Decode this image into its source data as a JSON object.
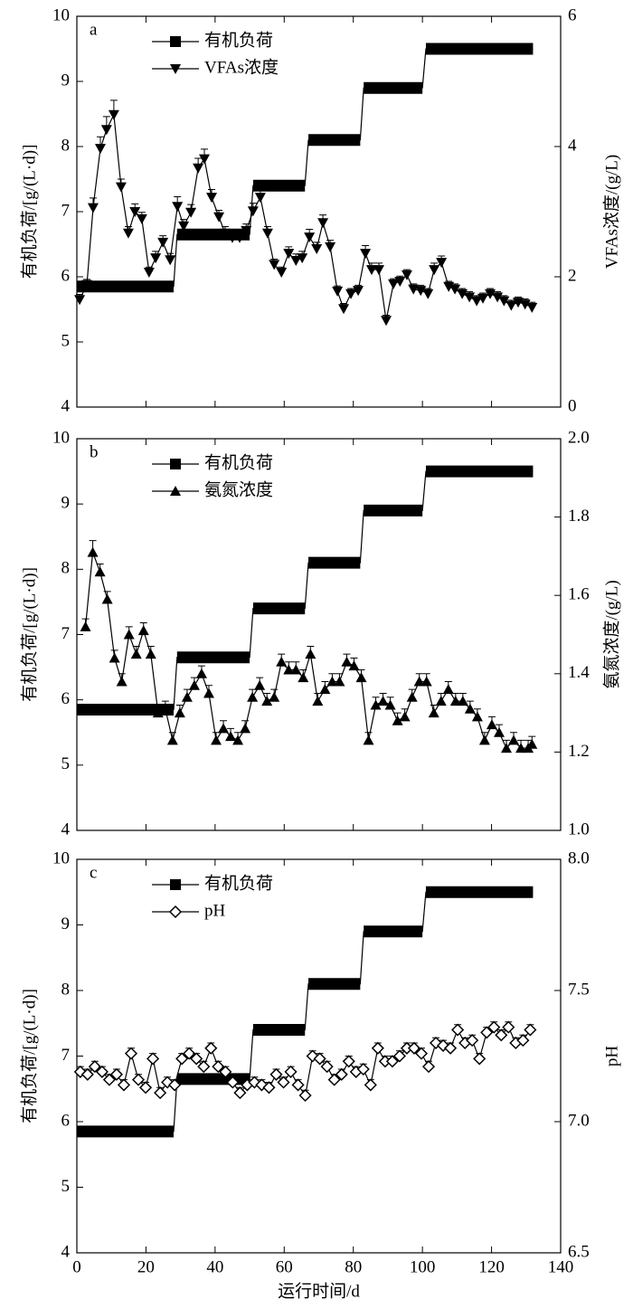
{
  "chart_data": [
    {
      "type": "line",
      "panel_label": "a",
      "ylabel": "有机负荷/[g/(L·d)]",
      "y2label": "VFAs浓度/(g/L)",
      "xlim": [
        0,
        140
      ],
      "xticks": [
        0,
        20,
        40,
        60,
        80,
        100,
        120,
        140
      ],
      "ylim": [
        4,
        10
      ],
      "yticks": [
        4,
        5,
        6,
        7,
        8,
        9,
        10
      ],
      "y2lim": [
        0,
        6
      ],
      "y2ticks": [
        0,
        2,
        4,
        6
      ],
      "legend": "upper left",
      "series": [
        {
          "name": "有机负荷",
          "color": "#000000",
          "marker": "square",
          "style": "step",
          "x": [
            0,
            28,
            29,
            50,
            51,
            66,
            67,
            82,
            83,
            100,
            101,
            132
          ],
          "values": [
            5.85,
            5.85,
            6.65,
            6.65,
            7.4,
            7.4,
            8.1,
            8.1,
            8.9,
            8.9,
            9.5,
            9.5
          ]
        },
        {
          "name": "VFAs浓度",
          "color": "#000000",
          "marker": "triangle-down",
          "axis": "y2",
          "x": [
            0.8,
            2.9,
            4.7,
            6.8,
            8.6,
            10.7,
            12.8,
            14.9,
            16.8,
            18.8,
            20.9,
            22.8,
            24.9,
            27,
            29.1,
            30.9,
            33,
            35.1,
            36.9,
            39,
            41.1,
            42.9,
            45,
            47.1,
            49,
            51,
            53.1,
            55.2,
            57.1,
            59.2,
            61.3,
            63.4,
            65.2,
            67.3,
            69.4,
            71.2,
            73.3,
            75.4,
            77.2,
            79.3,
            81.4,
            83.5,
            85.3,
            87.4,
            89.5,
            91.6,
            93.5,
            95.5,
            97.4,
            99.5,
            101.6,
            103.4,
            105.5,
            107.6,
            109.4,
            111.5,
            113.6,
            115.7,
            117.5,
            119.6,
            121.7,
            123.6,
            125.7,
            127.7,
            129.7,
            131.7
          ],
          "values": [
            1.65,
            1.88,
            3.06,
            3.97,
            4.26,
            4.49,
            3.38,
            2.67,
            3.0,
            2.89,
            2.07,
            2.29,
            2.53,
            2.26,
            3.08,
            2.78,
            2.99,
            3.67,
            3.81,
            3.22,
            2.92,
            2.67,
            2.6,
            2.6,
            2.71,
            3.01,
            3.22,
            2.67,
            2.19,
            2.07,
            2.36,
            2.25,
            2.29,
            2.61,
            2.43,
            2.83,
            2.46,
            1.78,
            1.51,
            1.74,
            1.79,
            2.36,
            2.11,
            2.11,
            1.33,
            1.89,
            1.93,
            2.03,
            1.81,
            1.79,
            1.74,
            2.11,
            2.22,
            1.85,
            1.81,
            1.74,
            1.69,
            1.63,
            1.67,
            1.74,
            1.69,
            1.63,
            1.56,
            1.61,
            1.58,
            1.53
          ],
          "errors": [
            0.08,
            0.08,
            0.15,
            0.18,
            0.2,
            0.22,
            0.12,
            0.1,
            0.12,
            0.1,
            0.08,
            0.1,
            0.1,
            0.1,
            0.15,
            0.1,
            0.12,
            0.15,
            0.15,
            0.12,
            0.1,
            0.1,
            0.1,
            0.1,
            0.1,
            0.12,
            0.12,
            0.1,
            0.08,
            0.08,
            0.1,
            0.1,
            0.1,
            0.12,
            0.1,
            0.12,
            0.1,
            0.08,
            0.08,
            0.08,
            0.08,
            0.12,
            0.1,
            0.1,
            0.08,
            0.08,
            0.08,
            0.08,
            0.08,
            0.08,
            0.08,
            0.1,
            0.1,
            0.08,
            0.08,
            0.08,
            0.08,
            0.08,
            0.08,
            0.08,
            0.08,
            0.08,
            0.08,
            0.08,
            0.08,
            0.08
          ]
        }
      ]
    },
    {
      "type": "line",
      "panel_label": "b",
      "ylabel": "有机负荷/[g/(L·d)]",
      "y2label": "氨氮浓度/(g/L)",
      "xlim": [
        0,
        140
      ],
      "xticks": [
        0,
        20,
        40,
        60,
        80,
        100,
        120,
        140
      ],
      "ylim": [
        4,
        10
      ],
      "yticks": [
        4,
        5,
        6,
        7,
        8,
        9,
        10
      ],
      "y2lim": [
        1.0,
        2.0
      ],
      "y2ticks": [
        {
          "value": 1.0,
          "label": "1.0"
        },
        1.2,
        1.4,
        1.6,
        1.8,
        {
          "value": 2.0,
          "label": "2.0"
        }
      ],
      "legend": "upper left",
      "series": [
        {
          "name": "有机负荷",
          "color": "#000000",
          "marker": "square",
          "style": "step",
          "x": [
            0,
            28,
            29,
            50,
            51,
            66,
            67,
            82,
            83,
            100,
            101,
            132
          ],
          "values": [
            5.85,
            5.85,
            6.65,
            6.65,
            7.4,
            7.4,
            8.1,
            8.1,
            8.9,
            8.9,
            9.5,
            9.5
          ]
        },
        {
          "name": "氨氮浓度",
          "color": "#000000",
          "marker": "triangle-up",
          "axis": "y2",
          "x": [
            2.5,
            4.6,
            6.7,
            8.8,
            10.9,
            13,
            15.1,
            17.2,
            19.3,
            21.4,
            23.5,
            25.6,
            27.7,
            29.8,
            31.9,
            34,
            36.1,
            38.2,
            40.3,
            42.4,
            44.5,
            46.6,
            48.7,
            50.8,
            52.9,
            55,
            57.1,
            59.2,
            61.3,
            63.4,
            65.5,
            67.6,
            69.7,
            71.8,
            73.9,
            76,
            78.1,
            80.2,
            82.3,
            84.4,
            86.5,
            88.6,
            90.7,
            92.8,
            94.9,
            97,
            99.1,
            101.2,
            103.3,
            105.4,
            107.5,
            109.6,
            111.7,
            113.8,
            115.9,
            118,
            120.1,
            122.2,
            124.3,
            126.4,
            128.5,
            130.6,
            131.7
          ],
          "values": [
            1.52,
            1.71,
            1.66,
            1.59,
            1.44,
            1.38,
            1.5,
            1.45,
            1.51,
            1.45,
            1.3,
            1.31,
            1.23,
            1.3,
            1.34,
            1.37,
            1.4,
            1.35,
            1.23,
            1.26,
            1.24,
            1.23,
            1.26,
            1.34,
            1.37,
            1.33,
            1.34,
            1.43,
            1.41,
            1.41,
            1.39,
            1.45,
            1.33,
            1.36,
            1.38,
            1.38,
            1.43,
            1.42,
            1.39,
            1.23,
            1.32,
            1.33,
            1.32,
            1.28,
            1.29,
            1.34,
            1.38,
            1.38,
            1.3,
            1.33,
            1.36,
            1.33,
            1.33,
            1.31,
            1.29,
            1.23,
            1.27,
            1.25,
            1.21,
            1.23,
            1.21,
            1.21,
            1.22
          ],
          "errors": [
            0.02,
            0.03,
            0.02,
            0.02,
            0.02,
            0.02,
            0.02,
            0.02,
            0.02,
            0.02,
            0.02,
            0.02,
            0.02,
            0.02,
            0.02,
            0.02,
            0.02,
            0.02,
            0.02,
            0.02,
            0.02,
            0.02,
            0.02,
            0.02,
            0.02,
            0.02,
            0.02,
            0.02,
            0.02,
            0.02,
            0.02,
            0.02,
            0.02,
            0.02,
            0.02,
            0.02,
            0.02,
            0.02,
            0.02,
            0.02,
            0.02,
            0.02,
            0.02,
            0.02,
            0.02,
            0.02,
            0.02,
            0.02,
            0.02,
            0.02,
            0.02,
            0.02,
            0.02,
            0.02,
            0.02,
            0.02,
            0.02,
            0.02,
            0.02,
            0.02,
            0.02,
            0.02,
            0.02
          ]
        }
      ]
    },
    {
      "type": "line",
      "panel_label": "c",
      "ylabel": "有机负荷/[g/(L·d)]",
      "y2label": "pH",
      "xlabel": "运行时间/d",
      "xlim": [
        0,
        140
      ],
      "xticks": [
        0,
        20,
        40,
        60,
        80,
        100,
        120,
        140
      ],
      "ylim": [
        4,
        10
      ],
      "yticks": [
        4,
        5,
        6,
        7,
        8,
        9,
        10
      ],
      "y2lim": [
        6.5,
        8.0
      ],
      "y2ticks": [
        6.5,
        {
          "value": 7.0,
          "label": "7.0"
        },
        7.5,
        {
          "value": 8.0,
          "label": "8.0"
        }
      ],
      "legend": "upper left",
      "series": [
        {
          "name": "有机负荷",
          "color": "#000000",
          "marker": "square",
          "style": "step",
          "x": [
            0,
            28,
            29,
            50,
            51,
            66,
            67,
            82,
            83,
            100,
            101,
            132
          ],
          "values": [
            5.85,
            5.85,
            6.65,
            6.65,
            7.4,
            7.4,
            8.1,
            8.1,
            8.9,
            8.9,
            9.5,
            9.5
          ]
        },
        {
          "name": "pH",
          "color": "#000000",
          "marker": "diamond-open",
          "axis": "y2",
          "x": [
            1,
            3.1,
            5.2,
            7.3,
            9.4,
            11.5,
            13.6,
            15.7,
            17.8,
            19.9,
            22,
            24.1,
            26.2,
            28.3,
            30.4,
            32.5,
            34.6,
            36.7,
            38.8,
            40.9,
            43,
            45.1,
            47.2,
            49.3,
            51.4,
            53.5,
            55.6,
            57.7,
            59.8,
            61.9,
            64,
            66.1,
            68.2,
            70.3,
            72.4,
            74.5,
            76.6,
            78.7,
            80.8,
            82.9,
            85,
            87.1,
            89.2,
            91.3,
            93.4,
            95.5,
            97.6,
            99.7,
            101.8,
            103.9,
            106,
            108.1,
            110.2,
            112.3,
            114.4,
            116.5,
            118.6,
            120.7,
            122.8,
            124.9,
            127,
            129.1,
            131.2
          ],
          "values": [
            7.19,
            7.18,
            7.21,
            7.19,
            7.16,
            7.18,
            7.14,
            7.26,
            7.16,
            7.13,
            7.24,
            7.11,
            7.15,
            7.14,
            7.24,
            7.26,
            7.24,
            7.21,
            7.28,
            7.21,
            7.19,
            7.15,
            7.11,
            7.14,
            7.15,
            7.14,
            7.13,
            7.18,
            7.15,
            7.19,
            7.14,
            7.1,
            7.25,
            7.24,
            7.21,
            7.16,
            7.18,
            7.23,
            7.19,
            7.2,
            7.14,
            7.28,
            7.23,
            7.23,
            7.25,
            7.28,
            7.28,
            7.26,
            7.21,
            7.3,
            7.29,
            7.28,
            7.35,
            7.3,
            7.31,
            7.24,
            7.34,
            7.36,
            7.33,
            7.36,
            7.3,
            7.31,
            7.35
          ],
          "errors": [
            0.02,
            0.02,
            0.02,
            0.02,
            0.02,
            0.02,
            0.02,
            0.02,
            0.02,
            0.02,
            0.02,
            0.02,
            0.02,
            0.02,
            0.02,
            0.02,
            0.02,
            0.02,
            0.02,
            0.02,
            0.02,
            0.02,
            0.02,
            0.02,
            0.02,
            0.02,
            0.02,
            0.02,
            0.02,
            0.02,
            0.02,
            0.02,
            0.02,
            0.02,
            0.02,
            0.02,
            0.02,
            0.02,
            0.02,
            0.02,
            0.02,
            0.02,
            0.02,
            0.02,
            0.02,
            0.02,
            0.02,
            0.02,
            0.02,
            0.02,
            0.02,
            0.02,
            0.02,
            0.02,
            0.02,
            0.02,
            0.02,
            0.02,
            0.02,
            0.02,
            0.02,
            0.02,
            0.02
          ]
        }
      ]
    }
  ]
}
